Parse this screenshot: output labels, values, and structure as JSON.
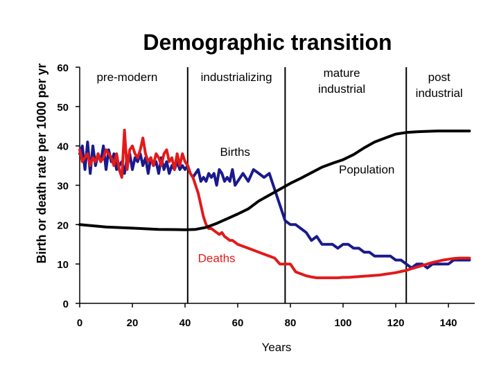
{
  "chart_data": {
    "type": "line",
    "title": "Demographic transition",
    "xlabel": "Years",
    "ylabel": "Birth or death rate per 1000 per yr",
    "xlim": [
      0,
      150
    ],
    "ylim": [
      0,
      60
    ],
    "x_ticks": [
      0,
      20,
      40,
      60,
      80,
      100,
      120,
      140
    ],
    "y_ticks": [
      0,
      10,
      20,
      30,
      40,
      50,
      60
    ],
    "grid": false,
    "phase_boundaries": [
      41,
      78,
      124
    ],
    "phases": [
      {
        "label": "pre-modern",
        "x": 18,
        "y": 56.5
      },
      {
        "label": "industrializing",
        "x": 59.5,
        "y": 56.5
      },
      {
        "label": "mature|industrial",
        "x": 99.5,
        "y": 57.5
      },
      {
        "label": "post|industrial",
        "x": 136.5,
        "y": 56.5
      }
    ],
    "series": [
      {
        "name": "Births",
        "color": "#1a1a8c",
        "label_x": 59,
        "label_y": 37.5,
        "x": [
          0,
          1,
          2,
          3,
          4,
          5,
          6,
          7,
          8,
          9,
          10,
          11,
          12,
          13,
          14,
          15,
          16,
          17,
          18,
          19,
          20,
          21,
          22,
          23,
          24,
          25,
          26,
          27,
          28,
          29,
          30,
          31,
          32,
          33,
          34,
          35,
          36,
          37,
          38,
          39,
          40,
          41,
          42,
          43,
          44,
          45,
          46,
          47,
          48,
          49,
          50,
          51,
          52,
          53,
          54,
          55,
          56,
          57,
          58,
          59,
          60,
          62,
          64,
          66,
          68,
          70,
          72,
          74,
          76,
          78,
          80,
          82,
          84,
          86,
          88,
          90,
          92,
          94,
          96,
          98,
          100,
          102,
          104,
          106,
          108,
          110,
          112,
          114,
          116,
          118,
          120,
          122,
          124,
          126,
          128,
          130,
          132,
          134,
          136,
          138,
          140,
          142,
          144,
          146,
          148
        ],
        "y": [
          38,
          40,
          34,
          41,
          33,
          40,
          35,
          38,
          36,
          40,
          34,
          39,
          36,
          38,
          34,
          35,
          36,
          33,
          37,
          38,
          34,
          37,
          36,
          38,
          35,
          37,
          33,
          37,
          35,
          36,
          33,
          37,
          34,
          36,
          33,
          35,
          34,
          36,
          34,
          35,
          34,
          35,
          33,
          32,
          33,
          34,
          31,
          32,
          31,
          33,
          32,
          33,
          30,
          34,
          33,
          31,
          32,
          31,
          34,
          30,
          31,
          33,
          31,
          34,
          33,
          32,
          33,
          29,
          25,
          21,
          20,
          20,
          19,
          18,
          16,
          17,
          15,
          15,
          15,
          14,
          15,
          15,
          14,
          14,
          13,
          13,
          12,
          12,
          12,
          12,
          11,
          11,
          10,
          9,
          10,
          10,
          9,
          10,
          10,
          10,
          10,
          11,
          11,
          11,
          11
        ]
      },
      {
        "name": "Deaths",
        "color": "#e21a1a",
        "label_x": 52,
        "label_y": 10.5,
        "x": [
          0,
          1,
          2,
          3,
          4,
          5,
          6,
          7,
          8,
          9,
          10,
          11,
          12,
          13,
          14,
          15,
          16,
          17,
          18,
          19,
          20,
          21,
          22,
          23,
          24,
          25,
          26,
          27,
          28,
          29,
          30,
          31,
          32,
          33,
          34,
          35,
          36,
          37,
          38,
          39,
          40,
          41,
          42,
          43,
          44,
          45,
          46,
          47,
          48,
          49,
          50,
          51,
          52,
          53,
          54,
          55,
          56,
          57,
          58,
          59,
          60,
          62,
          64,
          66,
          68,
          70,
          72,
          74,
          76,
          78,
          80,
          82,
          84,
          86,
          88,
          90,
          92,
          94,
          96,
          98,
          100,
          102,
          104,
          106,
          108,
          110,
          112,
          114,
          116,
          118,
          120,
          122,
          124,
          126,
          128,
          130,
          132,
          134,
          136,
          138,
          140,
          142,
          144,
          146,
          148
        ],
        "y": [
          39,
          36,
          37,
          38,
          35,
          37,
          36,
          38,
          36,
          37,
          39,
          38,
          37,
          35,
          38,
          34,
          32,
          44,
          34,
          39,
          40,
          38,
          37,
          39,
          42,
          38,
          36,
          37,
          35,
          38,
          37,
          35,
          38,
          39,
          36,
          37,
          34,
          38,
          35,
          38,
          36,
          35,
          33,
          32,
          30,
          28,
          25,
          22,
          20,
          19,
          19,
          18.5,
          18,
          17.5,
          18,
          17,
          16.5,
          16,
          16,
          15.5,
          15,
          14.5,
          14,
          13.5,
          13,
          12.5,
          12,
          11.5,
          10,
          10,
          10,
          8,
          7.5,
          7,
          6.7,
          6.5,
          6.5,
          6.5,
          6.5,
          6.5,
          6.6,
          6.6,
          6.7,
          6.8,
          6.9,
          7,
          7.1,
          7.2,
          7.4,
          7.6,
          7.8,
          8.1,
          8.4,
          8.8,
          9.2,
          9.6,
          10.0,
          10.4,
          10.7,
          11.0,
          11.2,
          11.4,
          11.5,
          11.5,
          11.5
        ]
      },
      {
        "name": "Population",
        "color": "#000000",
        "label_x": 109,
        "label_y": 33,
        "x": [
          0,
          5,
          10,
          20,
          30,
          40,
          44,
          48,
          52,
          56,
          60,
          64,
          68,
          72,
          76,
          80,
          84,
          88,
          92,
          96,
          100,
          104,
          108,
          112,
          116,
          120,
          124,
          128,
          132,
          136,
          140,
          144,
          148
        ],
        "y": [
          20,
          19.7,
          19.4,
          19.1,
          18.8,
          18.7,
          18.8,
          19.3,
          20.3,
          21.5,
          22.7,
          24,
          26,
          27.5,
          29,
          30.5,
          31.8,
          33.2,
          34.6,
          35.6,
          36.5,
          37.8,
          39.5,
          41,
          42,
          43,
          43.4,
          43.6,
          43.7,
          43.8,
          43.8,
          43.8,
          43.8
        ]
      }
    ]
  }
}
